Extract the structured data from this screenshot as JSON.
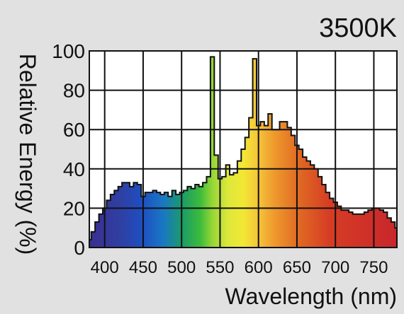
{
  "chart_data": {
    "type": "area",
    "title": "3500K",
    "xlabel": "Wavelength (nm)",
    "ylabel": "Relative Energy (%)",
    "xlim": [
      380,
      780
    ],
    "ylim": [
      0,
      100
    ],
    "x_ticks": [
      400,
      450,
      500,
      550,
      600,
      650,
      700,
      750
    ],
    "y_ticks": [
      0,
      20,
      40,
      60,
      80,
      100
    ],
    "grid": true,
    "legend": "none",
    "fill": "visible-spectrum gradient",
    "colors": {
      "background": "#e1e1e1",
      "plot_background": "#ffffff",
      "grid": "#111111",
      "outline": "#111111"
    },
    "series": [
      {
        "x": [
          380,
          385,
          390,
          395,
          400,
          405,
          410,
          415,
          420,
          425,
          430,
          435,
          440,
          445,
          450,
          455,
          460,
          465,
          470,
          475,
          480,
          485,
          490,
          495,
          500,
          505,
          510,
          515,
          520,
          525,
          530,
          535,
          540,
          545,
          550,
          555,
          560,
          565,
          570,
          575,
          580,
          585,
          590,
          595,
          600,
          605,
          610,
          615,
          620,
          625,
          630,
          635,
          640,
          645,
          650,
          655,
          660,
          665,
          670,
          675,
          680,
          685,
          690,
          695,
          700,
          705,
          710,
          715,
          720,
          725,
          730,
          735,
          740,
          745,
          750,
          755,
          760,
          765,
          770,
          775,
          780
        ],
        "y": [
          4,
          8,
          13,
          17,
          20,
          24,
          27,
          29,
          31,
          33,
          33,
          31,
          33,
          32,
          26,
          28,
          28,
          29,
          28,
          27,
          28,
          26,
          29,
          27,
          28,
          29,
          31,
          30,
          32,
          31,
          33,
          36,
          97,
          47,
          35,
          36,
          42,
          37,
          38,
          44,
          50,
          56,
          66,
          96,
          62,
          64,
          62,
          68,
          60,
          60,
          64,
          64,
          61,
          57,
          52,
          50,
          46,
          44,
          42,
          40,
          36,
          32,
          28,
          25,
          23,
          21,
          19,
          19,
          18,
          17,
          17,
          17,
          18,
          19,
          20,
          20,
          19,
          18,
          15,
          13,
          10
        ]
      }
    ]
  }
}
